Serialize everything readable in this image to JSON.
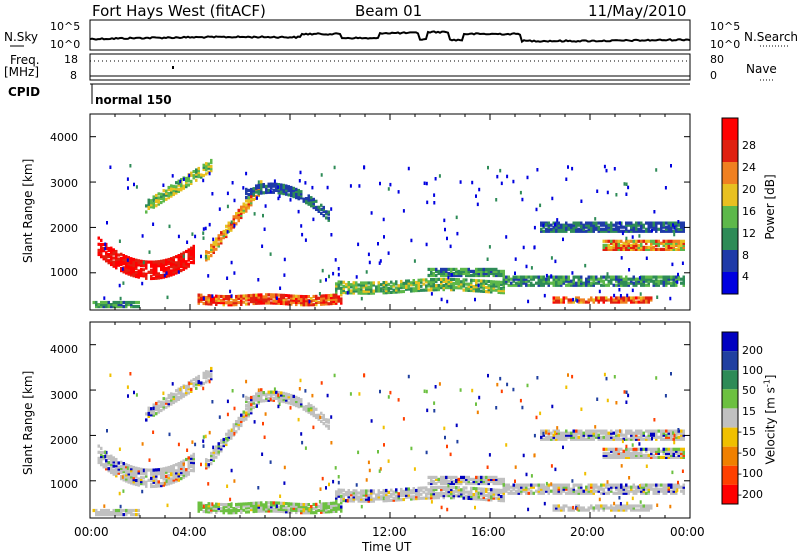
{
  "header": {
    "station": "Fort Hays West (fitACF)",
    "beam": "Beam 01",
    "date": "11/May/2010"
  },
  "noise_panel": {
    "left_label": "N.Sky",
    "right_label": "N.Search",
    "left_ticks": [
      "10^5",
      "10^0"
    ],
    "right_ticks": [
      "10^5",
      "10^0"
    ]
  },
  "freq_panel": {
    "left_label_1": "Freq.",
    "left_label_2": "[MHz]",
    "right_label": "Nave",
    "left_ticks": [
      "18",
      "8"
    ],
    "right_ticks": [
      "80",
      "0"
    ]
  },
  "cpid_panel": {
    "label": "CPID",
    "mode": "normal 150"
  },
  "chart_data": [
    {
      "type": "heatmap",
      "name": "power",
      "ylabel": "Slant Range [km]",
      "yticks": [
        "4000",
        "3000",
        "2000",
        "1000"
      ],
      "ylim": [
        180,
        4500
      ],
      "xlim": [
        0,
        24
      ],
      "colorbar_label": "Power [dB]",
      "colorbar_ticks": [
        "28",
        "24",
        "20",
        "16",
        "12",
        "8",
        "4"
      ],
      "colorbar_range": [
        0,
        30
      ],
      "colors": [
        "#0000e0",
        "#1f3aa8",
        "#2e8b57",
        "#5db84a",
        "#e8c020",
        "#f08020",
        "#e02010",
        "#ff0000"
      ]
    },
    {
      "type": "heatmap",
      "name": "velocity",
      "ylabel": "Slant Range [km]",
      "yticks": [
        "4000",
        "3000",
        "2000",
        "1000"
      ],
      "ylim": [
        180,
        4500
      ],
      "xlim": [
        0,
        24
      ],
      "colorbar_label": "Velocity [m s",
      "colorbar_label_sup": "-1",
      "colorbar_label_end": "]",
      "colorbar_ticks": [
        "200",
        "100",
        "50",
        "15",
        "-15",
        "-50",
        "-100",
        "-200"
      ],
      "colors": [
        "#0000c0",
        "#2040a0",
        "#2e8b57",
        "#6cc040",
        "#c0c0c0",
        "#f0c000",
        "#f08000",
        "#ff4000",
        "#ff0000"
      ]
    }
  ],
  "xaxis": {
    "ticks": [
      "00:00",
      "04:00",
      "08:00",
      "12:00",
      "16:00",
      "20:00",
      "00:00"
    ],
    "label": "Time UT"
  }
}
